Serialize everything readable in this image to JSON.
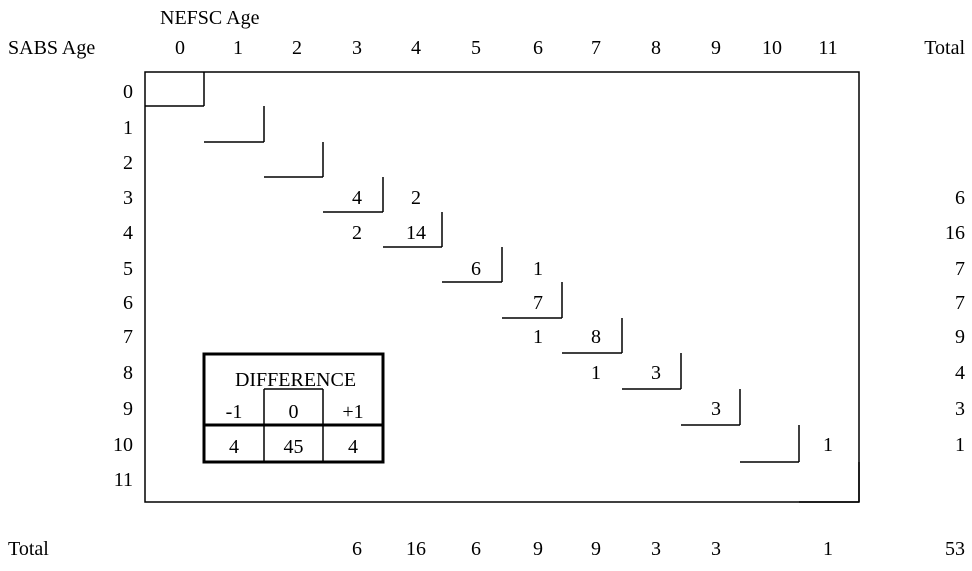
{
  "chart_data": {
    "type": "table",
    "title": "",
    "col_header": "NEFSC Age",
    "row_header": "SABS Age",
    "total_label": "Total",
    "columns": [
      "0",
      "1",
      "2",
      "3",
      "4",
      "5",
      "6",
      "7",
      "8",
      "9",
      "10",
      "11"
    ],
    "rows": [
      "0",
      "1",
      "2",
      "3",
      "4",
      "5",
      "6",
      "7",
      "8",
      "9",
      "10",
      "11"
    ],
    "cells": [
      {
        "row": "3",
        "col": "3",
        "value": 4
      },
      {
        "row": "3",
        "col": "4",
        "value": 2
      },
      {
        "row": "4",
        "col": "3",
        "value": 2
      },
      {
        "row": "4",
        "col": "4",
        "value": 14
      },
      {
        "row": "5",
        "col": "5",
        "value": 6
      },
      {
        "row": "5",
        "col": "6",
        "value": 1
      },
      {
        "row": "6",
        "col": "6",
        "value": 7
      },
      {
        "row": "7",
        "col": "6",
        "value": 1
      },
      {
        "row": "7",
        "col": "7",
        "value": 8
      },
      {
        "row": "8",
        "col": "7",
        "value": 1
      },
      {
        "row": "8",
        "col": "8",
        "value": 3
      },
      {
        "row": "9",
        "col": "9",
        "value": 3
      },
      {
        "row": "10",
        "col": "11",
        "value": 1
      }
    ],
    "row_totals": [
      "",
      "",
      "",
      "6",
      "16",
      "7",
      "7",
      "9",
      "4",
      "3",
      "1",
      ""
    ],
    "col_totals": [
      "",
      "",
      "",
      "6",
      "16",
      "6",
      "9",
      "9",
      "3",
      "3",
      "",
      "1"
    ],
    "grand_total": "53",
    "difference": {
      "title": "DIFFERENCE",
      "labels": [
        "-1",
        "0",
        "+1"
      ],
      "values": [
        "4",
        "45",
        "4"
      ]
    }
  }
}
